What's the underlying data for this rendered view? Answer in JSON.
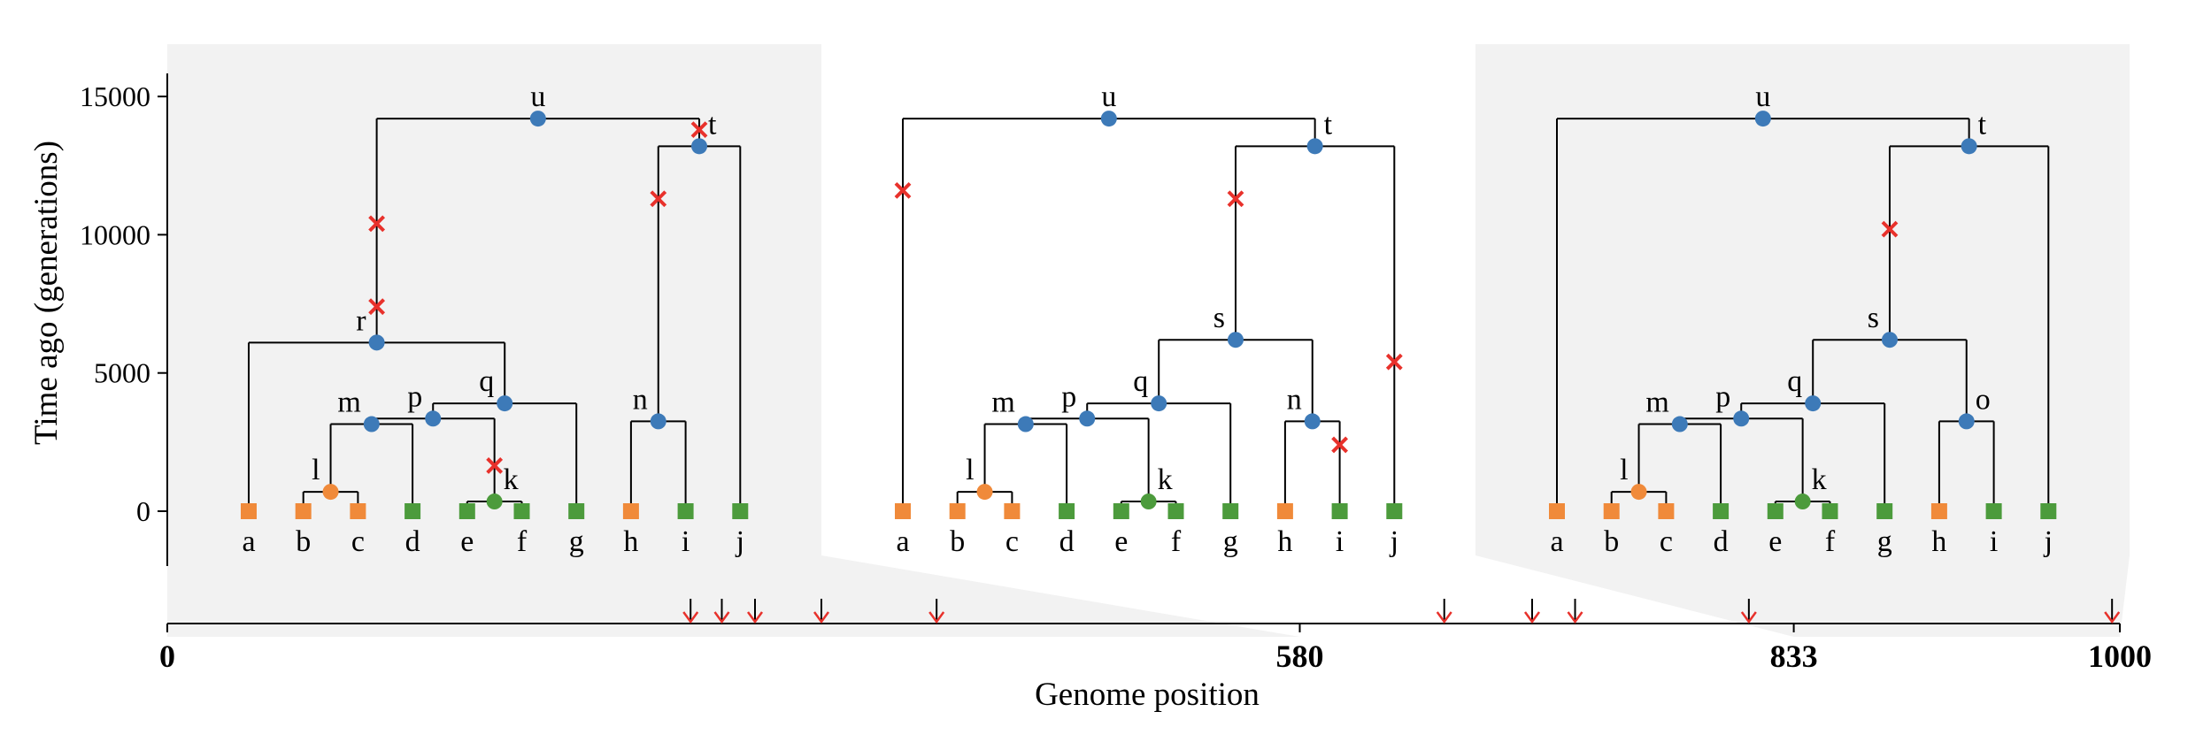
{
  "y_axis": {
    "label": "Time ago (generations)",
    "ticks": [
      "15000",
      "10000",
      "5000",
      "0"
    ],
    "tick_values": [
      15000,
      10000,
      5000,
      0
    ]
  },
  "x_axis": {
    "label": "Genome position",
    "ticks": [
      "0",
      "580",
      "833",
      "1000"
    ],
    "tick_values": [
      0,
      580,
      833,
      1000
    ],
    "length": 1000
  },
  "colors": {
    "panel_background": "#f2f2f2",
    "internal_node": "#3d7ab8",
    "sample_orange": "#f08a3a",
    "sample_green": "#4c9b3c",
    "mutation": "#e8312b",
    "edge": "#000000"
  },
  "breakpoints": [
    580,
    833
  ],
  "site_positions": [
    268,
    284,
    301,
    335,
    394,
    654,
    699,
    721,
    810,
    996
  ],
  "trees": [
    {
      "interval": [
        0,
        580
      ],
      "background": true,
      "leaves": [
        {
          "id": "a",
          "color": "orange"
        },
        {
          "id": "b",
          "color": "orange"
        },
        {
          "id": "c",
          "color": "orange"
        },
        {
          "id": "d",
          "color": "green"
        },
        {
          "id": "e",
          "color": "green"
        },
        {
          "id": "f",
          "color": "green"
        },
        {
          "id": "g",
          "color": "green"
        },
        {
          "id": "h",
          "color": "orange"
        },
        {
          "id": "i",
          "color": "green"
        },
        {
          "id": "j",
          "color": "green"
        }
      ],
      "internal": [
        {
          "id": "l",
          "time": 700,
          "children": [
            "b",
            "c"
          ],
          "color": "orange"
        },
        {
          "id": "k",
          "time": 350,
          "children": [
            "e",
            "f"
          ],
          "color": "green"
        },
        {
          "id": "m",
          "time": 3150,
          "children": [
            "l",
            "d"
          ],
          "color": "blue"
        },
        {
          "id": "p",
          "time": 3350,
          "children": [
            "m",
            "k"
          ],
          "color": "blue"
        },
        {
          "id": "q",
          "time": 3900,
          "children": [
            "p",
            "g"
          ],
          "color": "blue"
        },
        {
          "id": "r",
          "time": 6100,
          "children": [
            "a",
            "q"
          ],
          "color": "blue"
        },
        {
          "id": "n",
          "time": 3250,
          "children": [
            "h",
            "i"
          ],
          "color": "blue"
        },
        {
          "id": "t",
          "time": 13200,
          "children": [
            "n",
            "j"
          ],
          "color": "blue"
        },
        {
          "id": "u",
          "time": 14200,
          "children": [
            "r",
            "t"
          ],
          "color": "blue"
        }
      ],
      "mutations": [
        {
          "above": "r",
          "time": 10400
        },
        {
          "above": "r",
          "time": 7400
        },
        {
          "above": "k",
          "time": 1650
        },
        {
          "above": "n",
          "time": 11300
        },
        {
          "above": "t",
          "time": 13800
        }
      ]
    },
    {
      "interval": [
        580,
        833
      ],
      "background": false,
      "leaves": [
        {
          "id": "a",
          "color": "orange"
        },
        {
          "id": "b",
          "color": "orange"
        },
        {
          "id": "c",
          "color": "orange"
        },
        {
          "id": "d",
          "color": "green"
        },
        {
          "id": "e",
          "color": "green"
        },
        {
          "id": "f",
          "color": "green"
        },
        {
          "id": "g",
          "color": "green"
        },
        {
          "id": "h",
          "color": "orange"
        },
        {
          "id": "i",
          "color": "green"
        },
        {
          "id": "j",
          "color": "green"
        }
      ],
      "internal": [
        {
          "id": "l",
          "time": 700,
          "children": [
            "b",
            "c"
          ],
          "color": "orange"
        },
        {
          "id": "k",
          "time": 350,
          "children": [
            "e",
            "f"
          ],
          "color": "green"
        },
        {
          "id": "m",
          "time": 3150,
          "children": [
            "l",
            "d"
          ],
          "color": "blue"
        },
        {
          "id": "p",
          "time": 3350,
          "children": [
            "m",
            "k"
          ],
          "color": "blue"
        },
        {
          "id": "q",
          "time": 3900,
          "children": [
            "p",
            "g"
          ],
          "color": "blue"
        },
        {
          "id": "n",
          "time": 3250,
          "children": [
            "h",
            "i"
          ],
          "color": "blue"
        },
        {
          "id": "s",
          "time": 6200,
          "children": [
            "q",
            "n"
          ],
          "color": "blue"
        },
        {
          "id": "t",
          "time": 13200,
          "children": [
            "s",
            "j"
          ],
          "color": "blue"
        },
        {
          "id": "u",
          "time": 14200,
          "children": [
            "a",
            "t"
          ],
          "color": "blue"
        }
      ],
      "mutations": [
        {
          "above": "a",
          "time": 11600
        },
        {
          "above": "s",
          "time": 11300
        },
        {
          "above": "j",
          "time": 5400
        },
        {
          "above": "i",
          "time": 2400
        }
      ]
    },
    {
      "interval": [
        833,
        1000
      ],
      "background": true,
      "leaves": [
        {
          "id": "a",
          "color": "orange"
        },
        {
          "id": "b",
          "color": "orange"
        },
        {
          "id": "c",
          "color": "orange"
        },
        {
          "id": "d",
          "color": "green"
        },
        {
          "id": "e",
          "color": "green"
        },
        {
          "id": "f",
          "color": "green"
        },
        {
          "id": "g",
          "color": "green"
        },
        {
          "id": "h",
          "color": "orange"
        },
        {
          "id": "i",
          "color": "green"
        },
        {
          "id": "j",
          "color": "green"
        }
      ],
      "internal": [
        {
          "id": "l",
          "time": 700,
          "children": [
            "b",
            "c"
          ],
          "color": "orange"
        },
        {
          "id": "k",
          "time": 350,
          "children": [
            "e",
            "f"
          ],
          "color": "green"
        },
        {
          "id": "m",
          "time": 3150,
          "children": [
            "l",
            "d"
          ],
          "color": "blue"
        },
        {
          "id": "p",
          "time": 3350,
          "children": [
            "m",
            "k"
          ],
          "color": "blue"
        },
        {
          "id": "q",
          "time": 3900,
          "children": [
            "p",
            "g"
          ],
          "color": "blue"
        },
        {
          "id": "o",
          "time": 3250,
          "children": [
            "h",
            "i"
          ],
          "color": "blue"
        },
        {
          "id": "s",
          "time": 6200,
          "children": [
            "q",
            "o"
          ],
          "color": "blue"
        },
        {
          "id": "t",
          "time": 13200,
          "children": [
            "s",
            "j"
          ],
          "color": "blue"
        },
        {
          "id": "u",
          "time": 14200,
          "children": [
            "a",
            "t"
          ],
          "color": "blue"
        }
      ],
      "mutations": [
        {
          "above": "s",
          "time": 10200
        }
      ]
    }
  ]
}
